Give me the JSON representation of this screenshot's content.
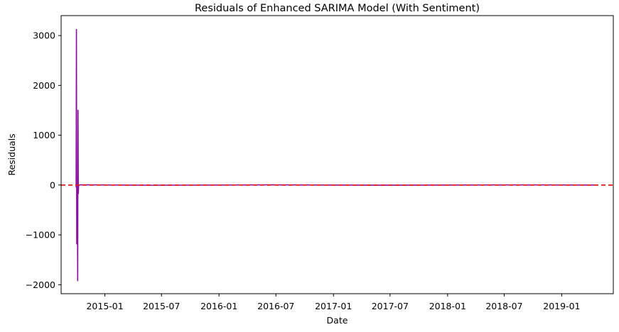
{
  "chart_data": {
    "type": "line",
    "title": "Residuals of Enhanced SARIMA Model (With Sentiment)",
    "xlabel": "Date",
    "ylabel": "Residuals",
    "x_type": "date",
    "xlim": [
      "2014-08-14",
      "2019-06-15"
    ],
    "ylim": [
      -2180,
      3400
    ],
    "x_ticks": [
      "2015-01-01",
      "2015-07-01",
      "2016-01-01",
      "2016-07-01",
      "2017-01-01",
      "2017-07-01",
      "2018-01-01",
      "2018-07-01",
      "2019-01-01"
    ],
    "x_tick_labels": [
      "2015-01",
      "2015-07",
      "2016-01",
      "2016-07",
      "2017-01",
      "2017-07",
      "2018-01",
      "2018-07",
      "2019-01"
    ],
    "y_ticks": [
      -2000,
      -1000,
      0,
      1000,
      2000,
      3000
    ],
    "y_tick_labels": [
      "−2000",
      "−1000",
      "0",
      "1000",
      "2000",
      "3000"
    ],
    "grid": false,
    "legend": "none",
    "reference_line": {
      "y": 0,
      "style": "dashed",
      "color": "#e41a1c"
    },
    "series": [
      {
        "color": "#8b0f9e",
        "points": [
          [
            "2014-10-01",
            -50
          ],
          [
            "2014-10-02",
            3120
          ],
          [
            "2014-10-03",
            -1180
          ],
          [
            "2014-10-04",
            -120
          ],
          [
            "2014-10-05",
            -60
          ],
          [
            "2014-10-06",
            -1920
          ],
          [
            "2014-10-07",
            1500
          ],
          [
            "2014-10-08",
            -170
          ],
          [
            "2014-10-09",
            5
          ],
          [
            "2014-10-10",
            -5
          ],
          [
            "2014-10-14",
            5
          ],
          [
            "2015-06-01",
            -4
          ],
          [
            "2016-06-01",
            4
          ],
          [
            "2017-06-01",
            -3
          ],
          [
            "2018-06-01",
            3
          ],
          [
            "2019-04-25",
            0
          ]
        ]
      }
    ]
  }
}
